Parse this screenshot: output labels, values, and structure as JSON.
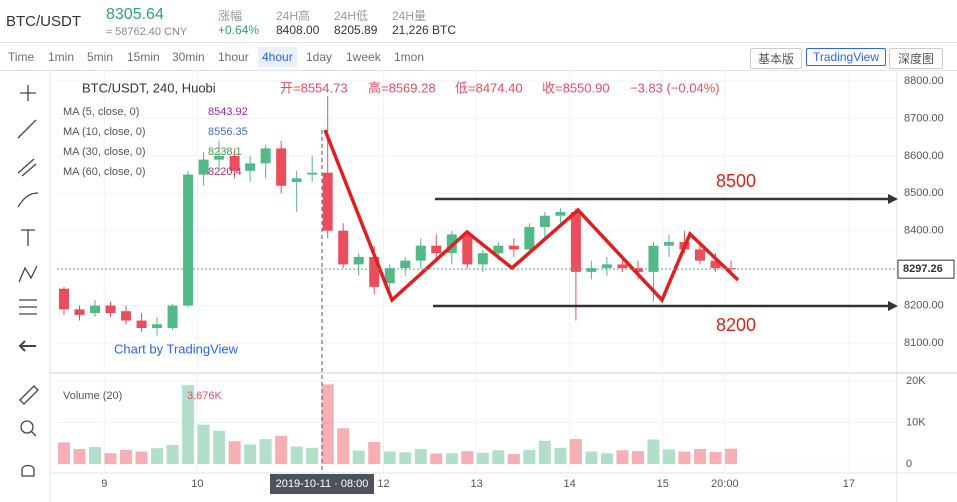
{
  "header": {
    "symbol": "BTC/USDT",
    "price": "8305.64",
    "cny": "≈ 58762.40 CNY",
    "stats": [
      {
        "label": "涨幅",
        "value": "+0.64%"
      },
      {
        "label": "24H高",
        "value": "8408.00"
      },
      {
        "label": "24H低",
        "value": "8205.89"
      },
      {
        "label": "24H量",
        "value": "21,226 BTC"
      }
    ]
  },
  "toolbar": {
    "intervals": [
      "Time",
      "1min",
      "5min",
      "15min",
      "30min",
      "1hour",
      "4hour",
      "1day",
      "1week",
      "1mon"
    ],
    "active": "4hour",
    "views": [
      "基本版",
      "TradingView",
      "深度图"
    ]
  },
  "chart_data": {
    "type": "candlestick",
    "title": "BTC/USDT, 240, Huobi",
    "ohlc_legend": [
      "开=8554.73",
      "高=8569.28",
      "低=8474.40",
      "收=8550.90",
      "−3.83 (−0.04%)"
    ],
    "ma_legend": [
      {
        "name": "MA (5, close, 0)",
        "value": "8543.92",
        "color": "#9c27b0"
      },
      {
        "name": "MA (10, close, 0)",
        "value": "8556.35",
        "color": "#3f6fd1"
      },
      {
        "name": "MA (30, close, 0)",
        "value": "8238.1",
        "color": "#43a047"
      },
      {
        "name": "MA (60, close, 0)",
        "value": "8220.4",
        "color": "#b0328a"
      }
    ],
    "open": [
      8245,
      8190,
      8180,
      8200,
      8185,
      8160,
      8140,
      8140,
      8200,
      8550,
      8590,
      8600,
      8560,
      8580,
      8620,
      8530,
      8550,
      8555,
      8400,
      8310,
      8330,
      8260,
      8300,
      8320,
      8360,
      8340,
      8390,
      8310,
      8340,
      8360,
      8350,
      8410,
      8440,
      8450,
      8290,
      8300,
      8310,
      8300,
      8290,
      8360,
      8370,
      8350,
      8320,
      8300
    ],
    "high": [
      8250,
      8200,
      8215,
      8210,
      8200,
      8180,
      8170,
      8205,
      8560,
      8610,
      8640,
      8620,
      8600,
      8630,
      8640,
      8560,
      8600,
      8760,
      8420,
      8340,
      8360,
      8310,
      8330,
      8380,
      8390,
      8400,
      8400,
      8350,
      8370,
      8380,
      8420,
      8450,
      8460,
      8460,
      8320,
      8330,
      8330,
      8320,
      8370,
      8390,
      8400,
      8370,
      8340,
      8320
    ],
    "low": [
      8175,
      8160,
      8170,
      8170,
      8150,
      8130,
      8120,
      8135,
      8195,
      8520,
      8560,
      8540,
      8530,
      8540,
      8500,
      8450,
      8530,
      8380,
      8300,
      8280,
      8230,
      8240,
      8280,
      8300,
      8320,
      8310,
      8300,
      8290,
      8320,
      8330,
      8340,
      8380,
      8420,
      8160,
      8270,
      8280,
      8290,
      8270,
      8210,
      8330,
      8340,
      8310,
      8290,
      8285
    ],
    "close": [
      8190,
      8175,
      8200,
      8180,
      8160,
      8140,
      8150,
      8200,
      8550,
      8590,
      8600,
      8560,
      8580,
      8620,
      8520,
      8540,
      8555,
      8400,
      8310,
      8330,
      8250,
      8300,
      8320,
      8360,
      8340,
      8390,
      8310,
      8340,
      8360,
      8350,
      8410,
      8440,
      8450,
      8290,
      8300,
      8310,
      8300,
      8290,
      8360,
      8370,
      8350,
      8320,
      8300,
      8297.26
    ],
    "up_color": "#53b987",
    "down_color": "#eb4d5c",
    "xlim": [
      -0.45,
      53.7
    ],
    "xticks": [
      {
        "value": 2.6,
        "label": "9"
      },
      {
        "value": 8.6,
        "label": "10"
      },
      {
        "value": 20.6,
        "label": "12"
      },
      {
        "value": 26.6,
        "label": "13"
      },
      {
        "value": 32.6,
        "label": "14"
      },
      {
        "value": 38.6,
        "label": "15"
      },
      {
        "value": 42.6,
        "label": "20:00"
      },
      {
        "value": 50.6,
        "label": "17"
      }
    ],
    "ylim": [
      8022.5,
      8829.4
    ],
    "yticks": [
      {
        "value": 8100,
        "label": "8100.00"
      },
      {
        "value": 8200,
        "label": "8200.00"
      },
      {
        "value": 8300,
        "label": "8300.00"
      },
      {
        "value": 8400,
        "label": "8400.00"
      },
      {
        "value": 8500,
        "label": "8500.00"
      },
      {
        "value": 8600,
        "label": "8600.00"
      },
      {
        "value": 8700,
        "label": "8700.00"
      },
      {
        "value": 8800,
        "label": "8800.00"
      }
    ],
    "last_price": 8297.26,
    "annotations": [
      "8500",
      "8200"
    ],
    "crosshair_label": "2019-10-11 · 08:00",
    "watermark": "Chart by TradingView",
    "volume": {
      "title": "Volume (20)",
      "value_label": "3.676K",
      "ylim": [
        -1930,
        21450
      ],
      "yticks": [
        {
          "value": 0,
          "label": "0"
        },
        {
          "value": 10000,
          "label": "10K"
        },
        {
          "value": 20000,
          "label": "20K"
        }
      ],
      "values": [
        5200,
        3600,
        4100,
        2600,
        3400,
        3000,
        3800,
        4600,
        19000,
        9500,
        8000,
        5500,
        4700,
        6000,
        6800,
        4200,
        3900,
        19200,
        8600,
        3200,
        5300,
        3000,
        2800,
        3600,
        2500,
        2600,
        3100,
        2700,
        3300,
        2400,
        3400,
        5600,
        3900,
        6000,
        3000,
        2600,
        3300,
        3100,
        5900,
        3500,
        3000,
        3600,
        2900,
        3676
      ]
    }
  }
}
